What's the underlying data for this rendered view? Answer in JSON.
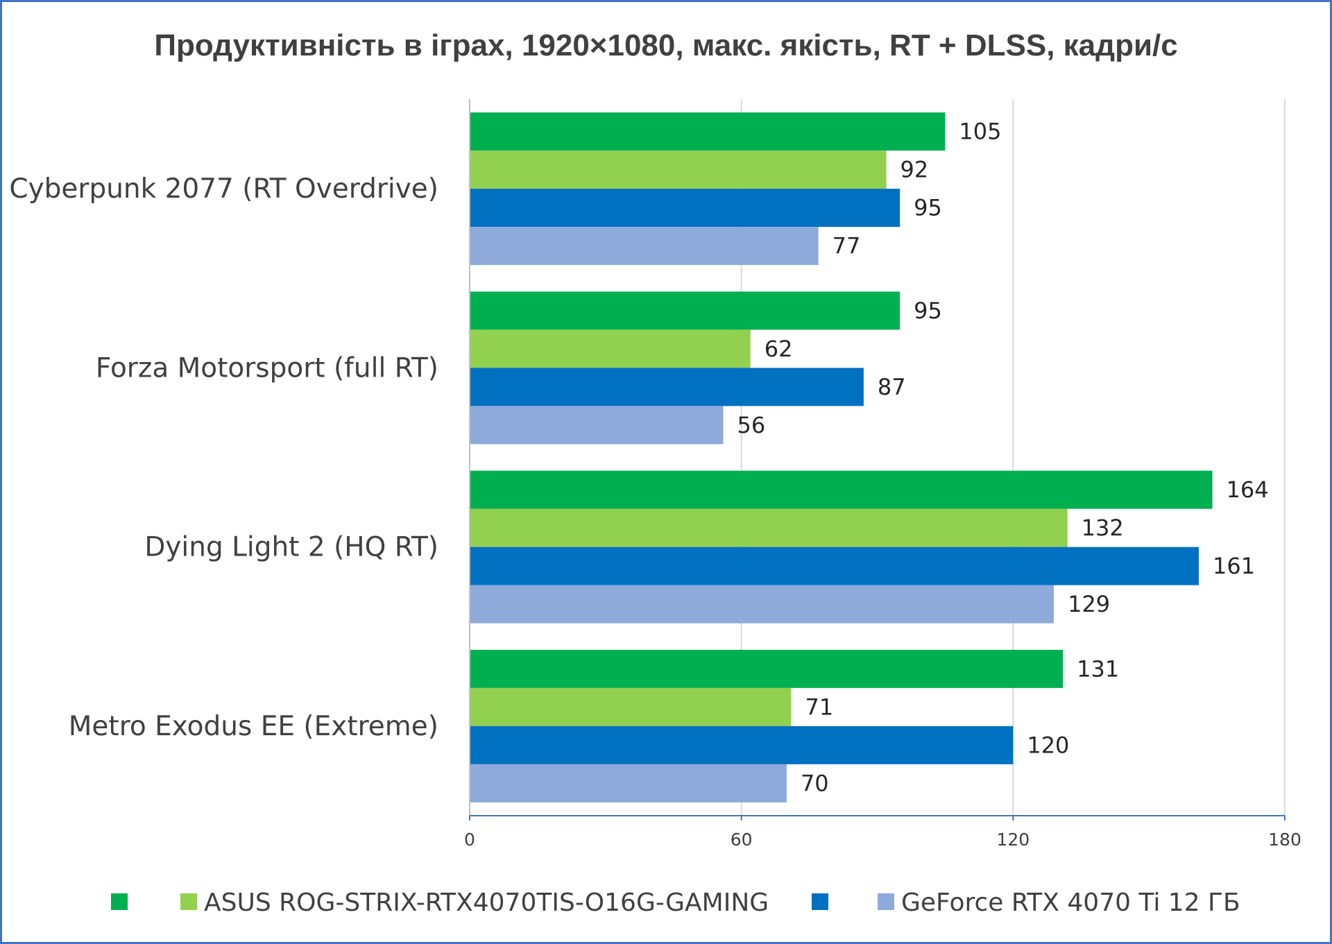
{
  "chart_data": {
    "type": "bar",
    "orientation": "horizontal",
    "title": "Продуктивність в іграх, 1920×1080, макс. якість, RT + DLSS, кадри/с",
    "categories": [
      "Cyberpunk 2077 (RT Overdrive)",
      "Forza Motorsport (full RT)",
      "Dying Light 2 (HQ RT)",
      "Metro Exodus EE (Extreme)"
    ],
    "series": [
      {
        "name": "",
        "color": "#00b050",
        "values": [
          105,
          95,
          164,
          131
        ]
      },
      {
        "name": "ASUS ROG-STRIX-RTX4070TIS-O16G-GAMING",
        "color": "#92d050",
        "values": [
          92,
          62,
          132,
          71
        ]
      },
      {
        "name": "",
        "color": "#0070c0",
        "values": [
          95,
          87,
          161,
          120
        ]
      },
      {
        "name": "GeForce RTX 4070 Ti 12 ГБ",
        "color": "#8eaadb",
        "values": [
          77,
          56,
          129,
          70
        ]
      }
    ],
    "xlim": [
      0,
      180
    ],
    "xticks": [
      0,
      60,
      120,
      180
    ],
    "grid": true,
    "legend_position": "bottom",
    "xlabel": "",
    "ylabel": ""
  }
}
